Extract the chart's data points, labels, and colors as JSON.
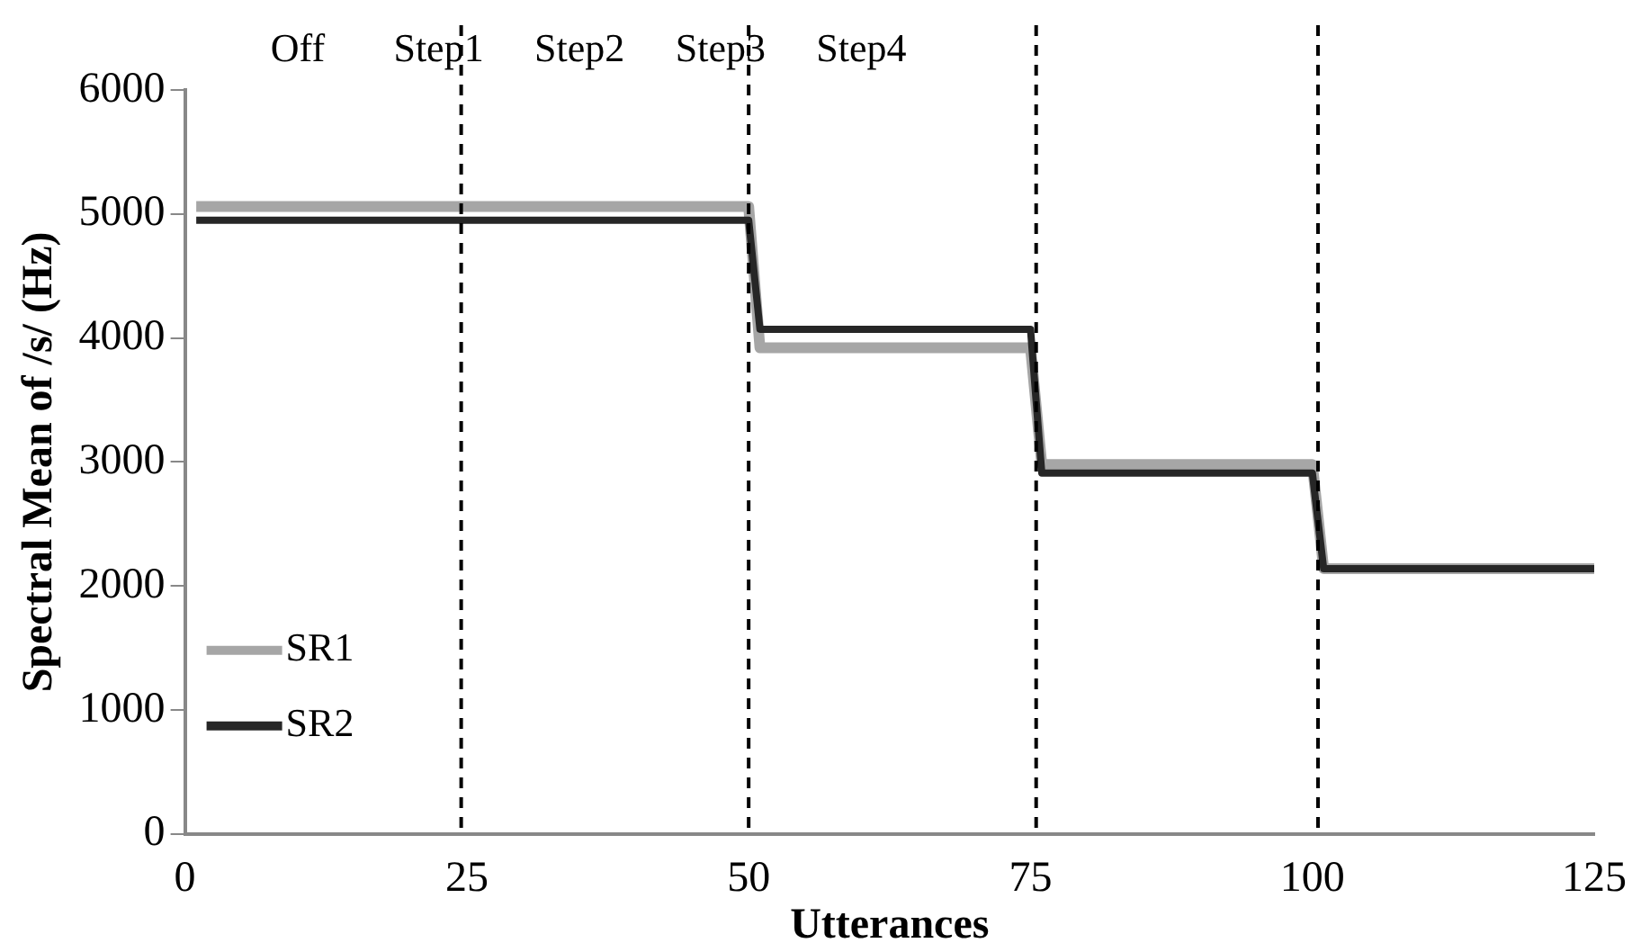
{
  "chart_data": {
    "type": "line",
    "xlabel": "Utterances",
    "ylabel": "Spectral Mean of /s/ (Hz)",
    "annotations": [
      "Off",
      "Step1",
      "Step2",
      "Step3",
      "Step4"
    ],
    "xlim": [
      0,
      125
    ],
    "xticks": [
      0,
      25,
      50,
      75,
      100,
      125
    ],
    "ylim": [
      0,
      6000
    ],
    "yticks": [
      0,
      1000,
      2000,
      3000,
      4000,
      5000,
      6000
    ],
    "grid": false,
    "legend": "bottom left",
    "marker": "none",
    "line_style": "solid",
    "series": [
      {
        "name": "SR1",
        "color": "#a6a6a6",
        "x": [
          1,
          50,
          51,
          75,
          76,
          100,
          101,
          125
        ],
        "values": [
          5060,
          5060,
          3920,
          3920,
          2980,
          2980,
          2140,
          2140
        ]
      },
      {
        "name": "SR2",
        "color": "#262626",
        "x": [
          1,
          50,
          51,
          75,
          76,
          100,
          101,
          125
        ],
        "values": [
          4950,
          4950,
          4070,
          4070,
          2910,
          2910,
          2140,
          2140
        ]
      }
    ],
    "ref_lines": [
      {
        "axis": "x",
        "value": 24.5,
        "color": "#000000",
        "line_style": "dashed"
      },
      {
        "axis": "x",
        "value": 50,
        "color": "#000000",
        "line_style": "dashed"
      },
      {
        "axis": "x",
        "value": 75.5,
        "color": "#000000",
        "line_style": "dashed"
      },
      {
        "axis": "x",
        "value": 100.5,
        "color": "#000000",
        "line_style": "dashed"
      }
    ]
  }
}
